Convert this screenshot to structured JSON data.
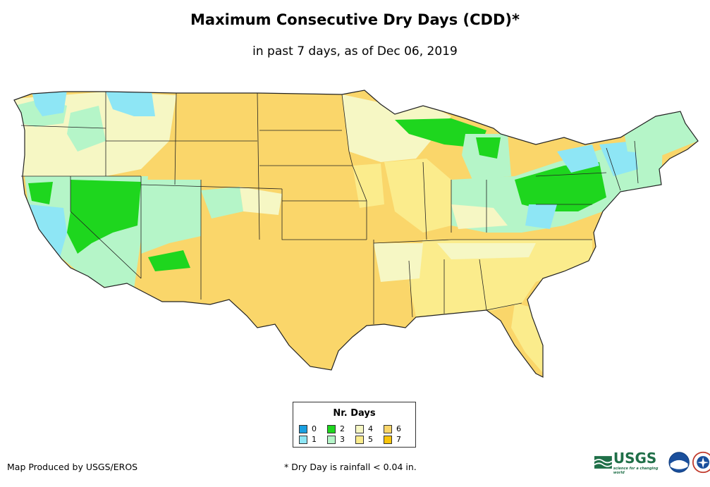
{
  "title": "Maximum Consecutive Dry Days (CDD)*",
  "subtitle": "in past 7 days, as of Dec 06, 2019",
  "legend": {
    "title": "Nr. Days",
    "items": [
      {
        "label": "0",
        "color": "#1a9fe0"
      },
      {
        "label": "1",
        "color": "#8ee6f5"
      },
      {
        "label": "2",
        "color": "#1ed61e"
      },
      {
        "label": "3",
        "color": "#b5f5c8"
      },
      {
        "label": "4",
        "color": "#f6f7c4"
      },
      {
        "label": "5",
        "color": "#fbec8c"
      },
      {
        "label": "6",
        "color": "#fad66a"
      },
      {
        "label": "7",
        "color": "#f8c40a"
      }
    ]
  },
  "credit": "Map Produced by USGS/EROS",
  "footnote": "* Dry Day is rainfall < 0.04 in.",
  "logos": {
    "usgs": "USGS",
    "usgs_tagline": "science for a changing world",
    "usgs_icon": "usgs-wave-icon",
    "noaa_icon": "noaa-seal-icon",
    "nws_icon": "nws-seal-icon"
  }
}
